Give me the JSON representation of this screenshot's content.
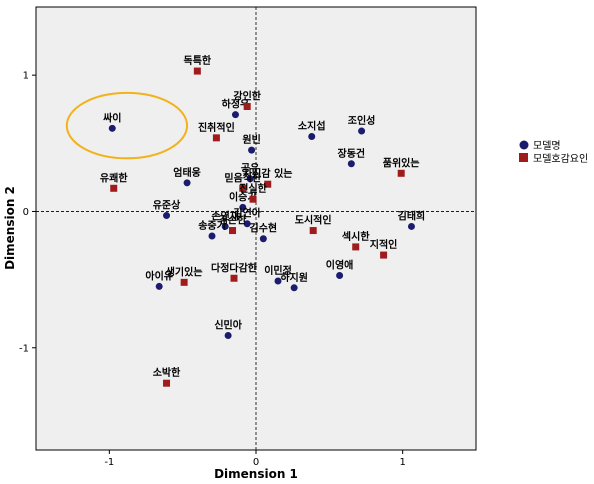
{
  "chart_data": {
    "type": "scatter",
    "xlabel": "Dimension 1",
    "ylabel": "Dimension 2",
    "xlim": [
      -1.5,
      1.5
    ],
    "ylim": [
      -1.75,
      1.5
    ],
    "xticks": [
      -1,
      0,
      1
    ],
    "yticks": [
      -1,
      0,
      1
    ],
    "tick_labels": {
      "x": [
        "-1",
        "0",
        "1"
      ],
      "y": [
        "-1",
        "0",
        "1"
      ]
    },
    "grid": false,
    "reference_lines": {
      "x": 0,
      "y": 0
    },
    "legend_position": "right",
    "colors": {
      "model": "#1c1c6e",
      "attr": "#a01c1c",
      "highlight": "#f2b21b",
      "background": "#efefef"
    },
    "highlight_ellipse": {
      "cx": -0.88,
      "cy": 0.63,
      "rx": 0.41,
      "ry": 0.24
    },
    "series": [
      {
        "name": "모델명",
        "marker": "circle",
        "points": [
          {
            "label": "싸이",
            "x": -0.98,
            "y": 0.61
          },
          {
            "label": "하정우",
            "x": -0.14,
            "y": 0.71
          },
          {
            "label": "원빈",
            "x": -0.03,
            "y": 0.45
          },
          {
            "label": "소지섭",
            "x": 0.38,
            "y": 0.55
          },
          {
            "label": "조인성",
            "x": 0.72,
            "y": 0.59
          },
          {
            "label": "장동건",
            "x": 0.65,
            "y": 0.35
          },
          {
            "label": "공유",
            "x": -0.04,
            "y": 0.24
          },
          {
            "label": "엄태웅",
            "x": -0.47,
            "y": 0.21
          },
          {
            "label": "이승기",
            "x": -0.09,
            "y": 0.03
          },
          {
            "label": "유준상",
            "x": -0.61,
            "y": -0.03
          },
          {
            "label": "손연재",
            "x": -0.21,
            "y": -0.11
          },
          {
            "label": "김연아",
            "x": -0.06,
            "y": -0.09
          },
          {
            "label": "송중기",
            "x": -0.3,
            "y": -0.18
          },
          {
            "label": "김수현",
            "x": 0.05,
            "y": -0.2
          },
          {
            "label": "김태희",
            "x": 1.06,
            "y": -0.11
          },
          {
            "label": "이영애",
            "x": 0.57,
            "y": -0.47
          },
          {
            "label": "이민정",
            "x": 0.15,
            "y": -0.51
          },
          {
            "label": "하지원",
            "x": 0.26,
            "y": -0.56
          },
          {
            "label": "아이유",
            "x": -0.66,
            "y": -0.55
          },
          {
            "label": "신민아",
            "x": -0.19,
            "y": -0.91
          }
        ]
      },
      {
        "name": "모델호감요인",
        "marker": "square",
        "points": [
          {
            "label": "독특한",
            "x": -0.4,
            "y": 1.03
          },
          {
            "label": "강인한",
            "x": -0.06,
            "y": 0.77
          },
          {
            "label": "진취적인",
            "x": -0.27,
            "y": 0.54
          },
          {
            "label": "품위있는",
            "x": 0.99,
            "y": 0.28
          },
          {
            "label": "유쾌한",
            "x": -0.97,
            "y": 0.17
          },
          {
            "label": "자신감 있는",
            "x": 0.08,
            "y": 0.2
          },
          {
            "label": "믿음직한",
            "x": -0.09,
            "y": 0.17
          },
          {
            "label": "진실한",
            "x": -0.02,
            "y": 0.09
          },
          {
            "label": "겸손한",
            "x": -0.16,
            "y": -0.14
          },
          {
            "label": "도시적인",
            "x": 0.39,
            "y": -0.14
          },
          {
            "label": "섹시한",
            "x": 0.68,
            "y": -0.26
          },
          {
            "label": "지적인",
            "x": 0.87,
            "y": -0.32
          },
          {
            "label": "다정다감한",
            "x": -0.15,
            "y": -0.49
          },
          {
            "label": "생기있는",
            "x": -0.49,
            "y": -0.52
          },
          {
            "label": "소박한",
            "x": -0.61,
            "y": -1.26
          }
        ]
      }
    ]
  }
}
